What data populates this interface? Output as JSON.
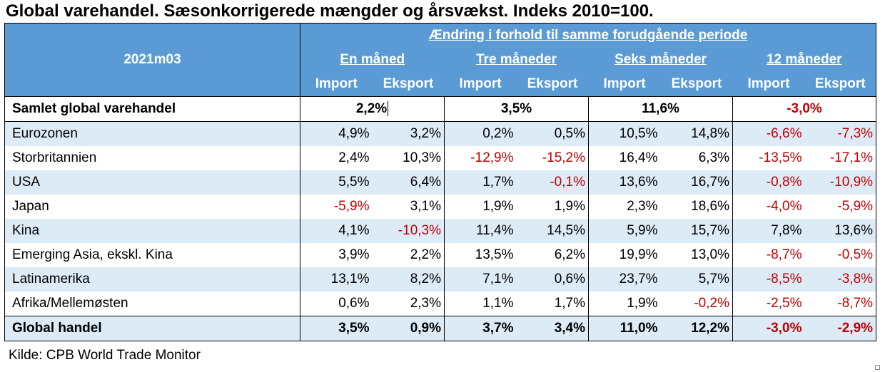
{
  "title": "Global varehandel. Sæsonkorrigerede mængder og årsvækst. Indeks 2010=100.",
  "header": {
    "period": "2021m03",
    "group_title": "Ændring i forhold til samme forudgående periode",
    "groups": [
      "En måned",
      "Tre måneder",
      "Seks måneder",
      "12 måneder"
    ],
    "sub": [
      "Import",
      "Eksport",
      "Import",
      "Eksport",
      "Import",
      "Eksport",
      "Import",
      "Eksport"
    ]
  },
  "total_row": {
    "label": "Samlet global varehandel",
    "values": [
      "2,2%",
      "3,5%",
      "11,6%",
      "-3,0%"
    ]
  },
  "rows": [
    {
      "label": "Eurozonen",
      "values": [
        "4,9%",
        "3,2%",
        "0,2%",
        "0,5%",
        "10,5%",
        "14,8%",
        "-6,6%",
        "-7,3%"
      ]
    },
    {
      "label": "Storbritannien",
      "values": [
        "2,4%",
        "10,3%",
        "-12,9%",
        "-15,2%",
        "16,4%",
        "6,3%",
        "-13,5%",
        "-17,1%"
      ]
    },
    {
      "label": "USA",
      "values": [
        "5,5%",
        "6,4%",
        "1,7%",
        "-0,1%",
        "13,6%",
        "16,7%",
        "-0,8%",
        "-10,9%"
      ]
    },
    {
      "label": "Japan",
      "values": [
        "-5,9%",
        "3,1%",
        "1,9%",
        "1,9%",
        "2,3%",
        "18,6%",
        "-4,0%",
        "-5,9%"
      ]
    },
    {
      "label": "Kina",
      "values": [
        "4,1%",
        "-10,3%",
        "11,4%",
        "14,5%",
        "5,9%",
        "15,7%",
        "7,8%",
        "13,6%"
      ]
    },
    {
      "label": "Emerging Asia, ekskl. Kina",
      "values": [
        "3,9%",
        "2,2%",
        "13,5%",
        "6,2%",
        "19,9%",
        "13,0%",
        "-8,7%",
        "-0,5%"
      ]
    },
    {
      "label": "Latinamerika",
      "values": [
        "13,1%",
        "8,2%",
        "7,1%",
        "0,6%",
        "23,7%",
        "5,7%",
        "-8,5%",
        "-3,8%"
      ]
    },
    {
      "label": "Afrika/Mellemøsten",
      "values": [
        "0,6%",
        "2,3%",
        "1,1%",
        "1,7%",
        "1,9%",
        "-0,2%",
        "-2,5%",
        "-8,7%"
      ]
    }
  ],
  "global_row": {
    "label": "Global handel",
    "values": [
      "3,5%",
      "0,9%",
      "3,7%",
      "3,4%",
      "11,0%",
      "12,2%",
      "-3,0%",
      "-2,9%"
    ]
  },
  "source": "Kilde: CPB World Trade Monitor",
  "colors": {
    "header_bg": "#5b9bd5",
    "row_shade": "#ddebf7",
    "negative": "#c00000"
  }
}
